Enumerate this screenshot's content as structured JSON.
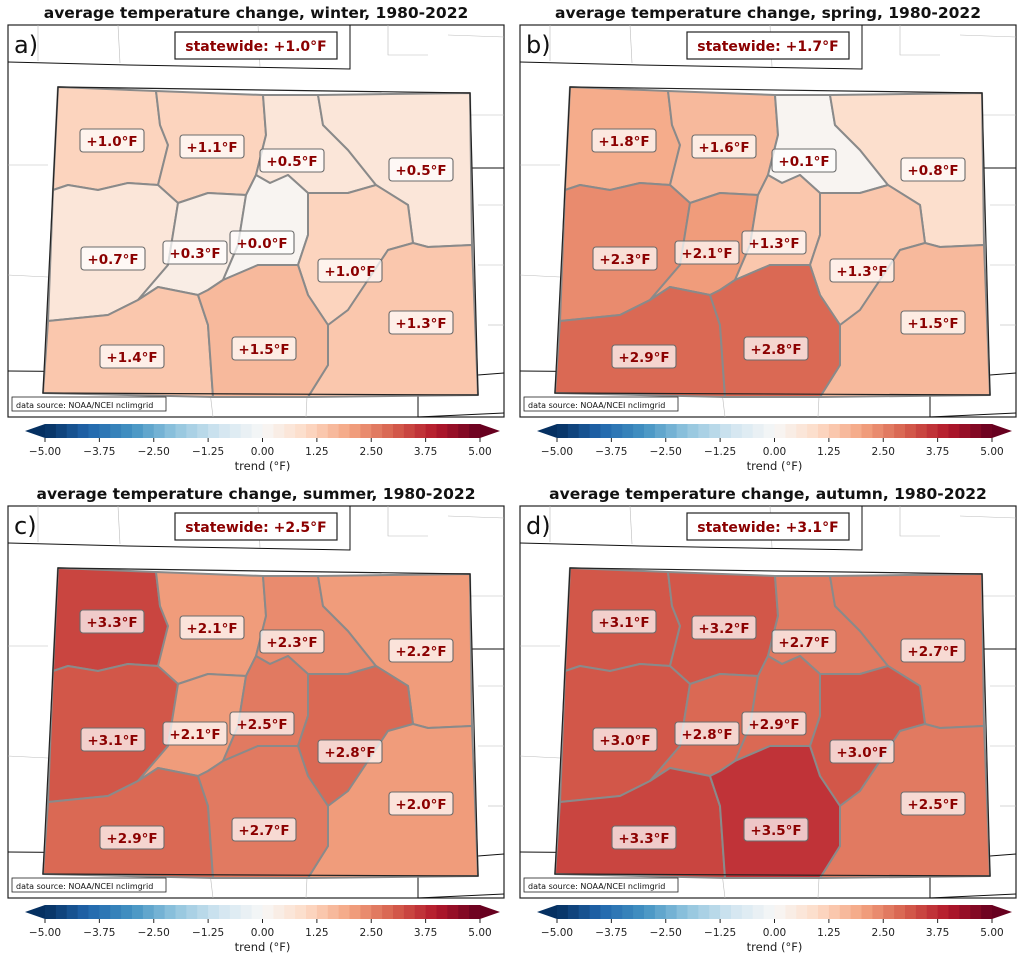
{
  "chart_data": [
    {
      "type": "heatmap",
      "panel_label": "a)",
      "title": "average temperature change, winter, 1980-2022",
      "statewide_label": "statewide: +1.0°F",
      "statewide_value": 1.0,
      "source_note": "data source: NOAA/NCEI nclimgrid",
      "regions": [
        {
          "name": "northwest",
          "value": 1.0,
          "label": "+1.0°F"
        },
        {
          "name": "north-central-mountains",
          "value": 1.1,
          "label": "+1.1°F"
        },
        {
          "name": "northern-front-range",
          "value": 0.5,
          "label": "+0.5°F"
        },
        {
          "name": "northeast-plains",
          "value": 0.5,
          "label": "+0.5°F"
        },
        {
          "name": "west-central",
          "value": 0.7,
          "label": "+0.7°F"
        },
        {
          "name": "central-mountains",
          "value": 0.3,
          "label": "+0.3°F"
        },
        {
          "name": "south-park",
          "value": 0.0,
          "label": "+0.0°F"
        },
        {
          "name": "central-plains",
          "value": 1.0,
          "label": "+1.0°F"
        },
        {
          "name": "southeast-plains",
          "value": 1.3,
          "label": "+1.3°F"
        },
        {
          "name": "southwest",
          "value": 1.4,
          "label": "+1.4°F"
        },
        {
          "name": "san-luis-valley",
          "value": 1.5,
          "label": "+1.5°F"
        }
      ],
      "colorbar": {
        "label": "trend (°F)",
        "ticks": [
          "−5.00",
          "−3.75",
          "−2.50",
          "−1.25",
          "0.00",
          "1.25",
          "2.50",
          "3.75",
          "5.00"
        ],
        "range": [
          -5,
          5
        ],
        "colormap": "RdBu_r",
        "extend": "both"
      }
    },
    {
      "type": "heatmap",
      "panel_label": "b)",
      "title": "average temperature change, spring, 1980-2022",
      "statewide_label": "statewide: +1.7°F",
      "statewide_value": 1.7,
      "source_note": "data source: NOAA/NCEI nclimgrid",
      "regions": [
        {
          "name": "northwest",
          "value": 1.8,
          "label": "+1.8°F"
        },
        {
          "name": "north-central-mountains",
          "value": 1.6,
          "label": "+1.6°F"
        },
        {
          "name": "northern-front-range",
          "value": 0.1,
          "label": "+0.1°F"
        },
        {
          "name": "northeast-plains",
          "value": 0.8,
          "label": "+0.8°F"
        },
        {
          "name": "west-central",
          "value": 2.3,
          "label": "+2.3°F"
        },
        {
          "name": "central-mountains",
          "value": 2.1,
          "label": "+2.1°F"
        },
        {
          "name": "south-park",
          "value": 1.3,
          "label": "+1.3°F"
        },
        {
          "name": "central-plains",
          "value": 1.3,
          "label": "+1.3°F"
        },
        {
          "name": "southeast-plains",
          "value": 1.5,
          "label": "+1.5°F"
        },
        {
          "name": "southwest",
          "value": 2.9,
          "label": "+2.9°F"
        },
        {
          "name": "san-luis-valley",
          "value": 2.8,
          "label": "+2.8°F"
        }
      ],
      "colorbar": {
        "label": "trend (°F)",
        "ticks": [
          "−5.00",
          "−3.75",
          "−2.50",
          "−1.25",
          "0.00",
          "1.25",
          "2.50",
          "3.75",
          "5.00"
        ],
        "range": [
          -5,
          5
        ],
        "colormap": "RdBu_r",
        "extend": "both"
      }
    },
    {
      "type": "heatmap",
      "panel_label": "c)",
      "title": "average temperature change, summer, 1980-2022",
      "statewide_label": "statewide: +2.5°F",
      "statewide_value": 2.5,
      "source_note": "data source: NOAA/NCEI nclimgrid",
      "regions": [
        {
          "name": "northwest",
          "value": 3.3,
          "label": "+3.3°F"
        },
        {
          "name": "north-central-mountains",
          "value": 2.1,
          "label": "+2.1°F"
        },
        {
          "name": "northern-front-range",
          "value": 2.3,
          "label": "+2.3°F"
        },
        {
          "name": "northeast-plains",
          "value": 2.2,
          "label": "+2.2°F"
        },
        {
          "name": "west-central",
          "value": 3.1,
          "label": "+3.1°F"
        },
        {
          "name": "central-mountains",
          "value": 2.1,
          "label": "+2.1°F"
        },
        {
          "name": "south-park",
          "value": 2.5,
          "label": "+2.5°F"
        },
        {
          "name": "central-plains",
          "value": 2.8,
          "label": "+2.8°F"
        },
        {
          "name": "southeast-plains",
          "value": 2.0,
          "label": "+2.0°F"
        },
        {
          "name": "southwest",
          "value": 2.9,
          "label": "+2.9°F"
        },
        {
          "name": "san-luis-valley",
          "value": 2.7,
          "label": "+2.7°F"
        }
      ],
      "colorbar": {
        "label": "trend (°F)",
        "ticks": [
          "−5.00",
          "−3.75",
          "−2.50",
          "−1.25",
          "0.00",
          "1.25",
          "2.50",
          "3.75",
          "5.00"
        ],
        "range": [
          -5,
          5
        ],
        "colormap": "RdBu_r",
        "extend": "both"
      }
    },
    {
      "type": "heatmap",
      "panel_label": "d)",
      "title": "average temperature change, autumn, 1980-2022",
      "statewide_label": "statewide: +3.1°F",
      "statewide_value": 3.1,
      "source_note": "data source: NOAA/NCEI nclimgrid",
      "regions": [
        {
          "name": "northwest",
          "value": 3.1,
          "label": "+3.1°F"
        },
        {
          "name": "north-central-mountains",
          "value": 3.2,
          "label": "+3.2°F"
        },
        {
          "name": "northern-front-range",
          "value": 2.7,
          "label": "+2.7°F"
        },
        {
          "name": "northeast-plains",
          "value": 2.7,
          "label": "+2.7°F"
        },
        {
          "name": "west-central",
          "value": 3.0,
          "label": "+3.0°F"
        },
        {
          "name": "central-mountains",
          "value": 2.8,
          "label": "+2.8°F"
        },
        {
          "name": "south-park",
          "value": 2.9,
          "label": "+2.9°F"
        },
        {
          "name": "central-plains",
          "value": 3.0,
          "label": "+3.0°F"
        },
        {
          "name": "southeast-plains",
          "value": 2.5,
          "label": "+2.5°F"
        },
        {
          "name": "southwest",
          "value": 3.3,
          "label": "+3.3°F"
        },
        {
          "name": "san-luis-valley",
          "value": 3.5,
          "label": "+3.5°F"
        }
      ],
      "colorbar": {
        "label": "trend (°F)",
        "ticks": [
          "−5.00",
          "−3.75",
          "−2.50",
          "−1.25",
          "0.00",
          "1.25",
          "2.50",
          "3.75",
          "5.00"
        ],
        "range": [
          -5,
          5
        ],
        "colormap": "RdBu_r",
        "extend": "both"
      }
    }
  ],
  "colors": {
    "label_text": "#8b0000",
    "colormap_stops": [
      "#053061",
      "#2166ac",
      "#4393c3",
      "#92c5de",
      "#d1e5f0",
      "#f7f7f7",
      "#fddbc7",
      "#f4a582",
      "#d6604d",
      "#b2182b",
      "#67001f"
    ]
  }
}
